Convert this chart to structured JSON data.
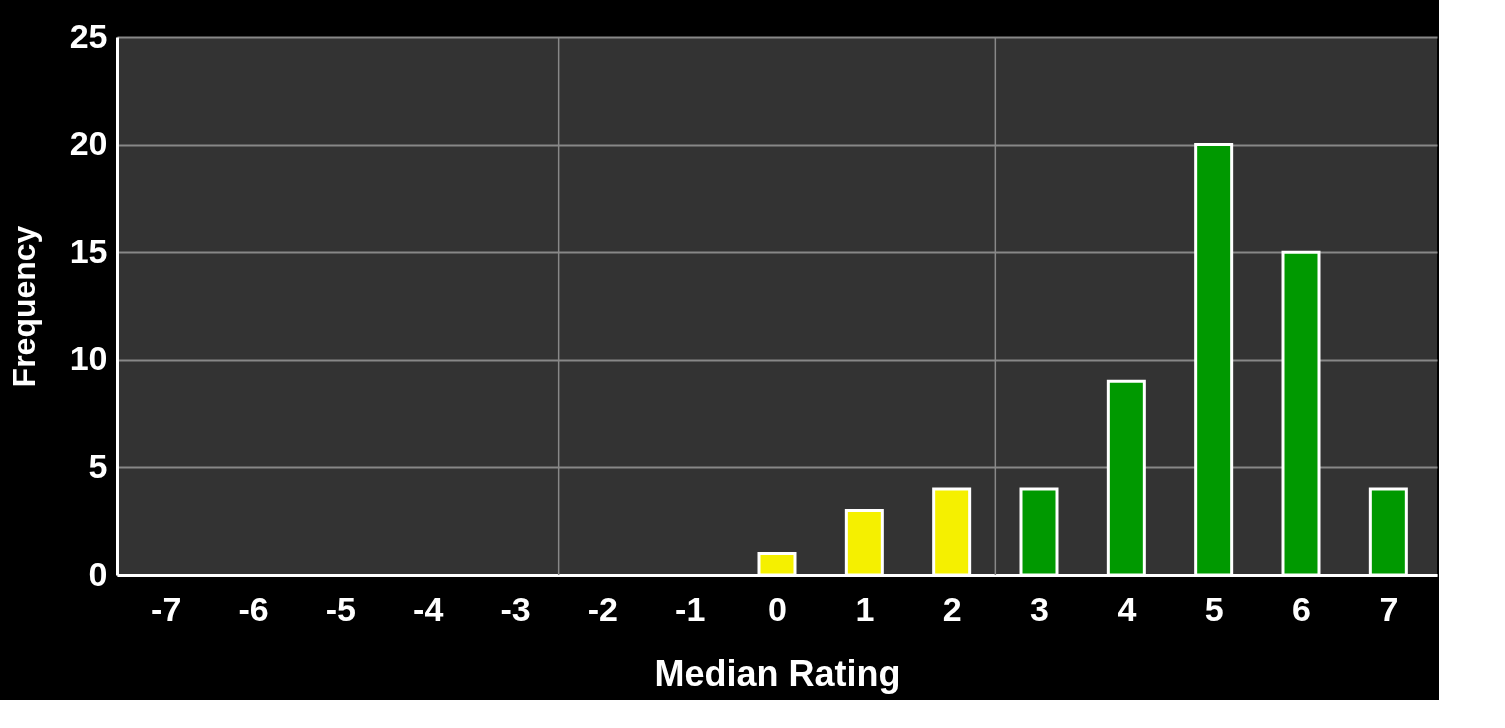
{
  "chart_data": {
    "type": "bar",
    "xlabel": "Median Rating",
    "ylabel": "Frequency",
    "x": [
      -7,
      -6,
      -5,
      -4,
      -3,
      -2,
      -1,
      0,
      1,
      2,
      3,
      4,
      5,
      6,
      7
    ],
    "values": [
      0,
      0,
      0,
      0,
      0,
      0,
      0,
      1,
      3,
      4,
      4,
      9,
      20,
      15,
      4
    ],
    "colors": [
      "#009900",
      "#009900",
      "#009900",
      "#009900",
      "#009900",
      "#009900",
      "#009900",
      "#f5f000",
      "#f5f000",
      "#f5f000",
      "#009900",
      "#009900",
      "#009900",
      "#009900",
      "#009900"
    ],
    "xlim": [
      -7.5,
      7.5
    ],
    "xticks": [
      -7,
      -6,
      -5,
      -4,
      -3,
      -2,
      -1,
      0,
      1,
      2,
      3,
      4,
      5,
      6,
      7
    ],
    "ylim": [
      0,
      25
    ],
    "yticks": [
      0,
      5,
      10,
      15,
      20,
      25
    ],
    "grid": "y",
    "ref_lines": [
      {
        "axis": "x",
        "value": -2.5,
        "color": "#888888"
      },
      {
        "axis": "x",
        "value": 2.5,
        "color": "#888888"
      }
    ]
  }
}
